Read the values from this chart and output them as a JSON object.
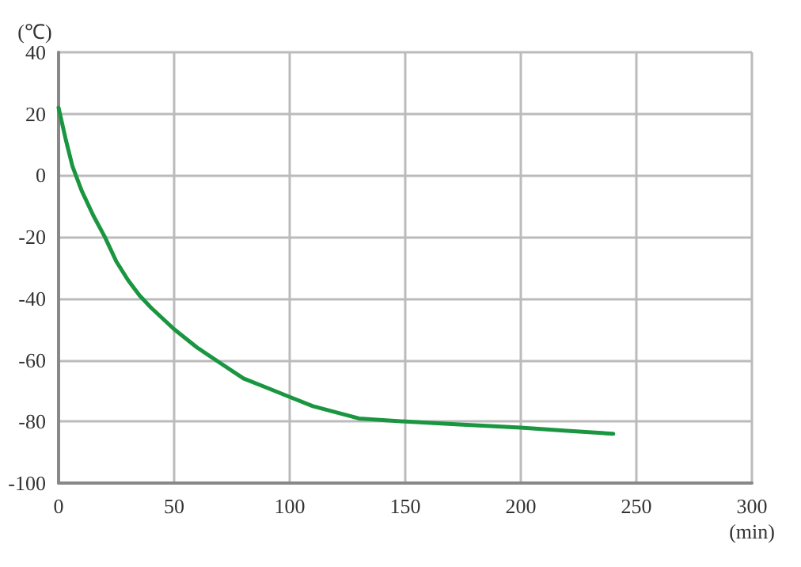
{
  "chart_data": {
    "type": "line",
    "ylabel": "(℃)",
    "xlabel": "(min)",
    "series": [
      {
        "color": "#1a9641",
        "x": [
          0,
          3,
          6,
          10,
          15,
          20,
          25,
          30,
          35,
          40,
          50,
          60,
          70,
          80,
          90,
          100,
          110,
          120,
          130,
          150,
          175,
          200,
          220,
          240
        ],
        "values": [
          22,
          12,
          3,
          -5,
          -13,
          -20,
          -28,
          -34,
          -39,
          -43,
          -50,
          -56,
          -61,
          -66,
          -69,
          -72,
          -75,
          -77,
          -79,
          -80,
          -81,
          -82,
          -83,
          -84
        ]
      }
    ],
    "xlim": [
      0,
      300
    ],
    "xticks": [
      0,
      50,
      100,
      150,
      200,
      250,
      300
    ],
    "ylim": [
      -100,
      40
    ],
    "yticks": [
      -100,
      -80,
      -60,
      -40,
      -20,
      0,
      20,
      40
    ],
    "grid": true,
    "marker": "none",
    "line_style": "solid"
  }
}
